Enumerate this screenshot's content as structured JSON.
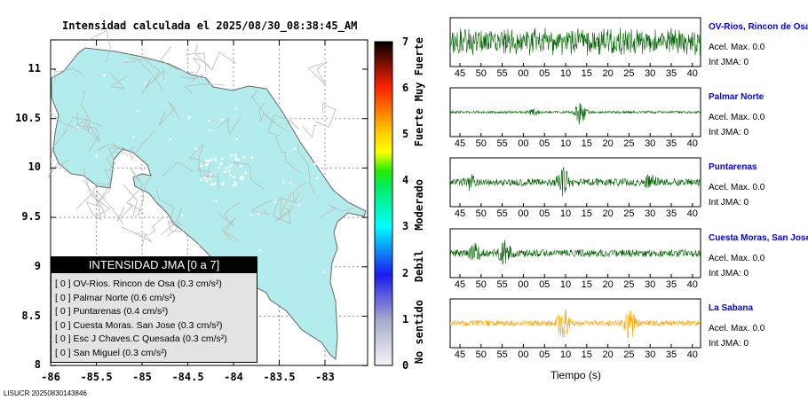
{
  "map": {
    "title": "Intensidad calculada el 2025/08/30_08:38:45_AM",
    "y_ticks": [
      "11",
      "10.5",
      "10",
      "9.5",
      "9",
      "8.5",
      "8"
    ],
    "x_ticks": [
      "-86",
      "-85.5",
      "-85",
      "-84.5",
      "-84",
      "-83.5",
      "-83"
    ],
    "lat_range": [
      8,
      11.3
    ],
    "lon_range": [
      -86,
      -82.5
    ],
    "land_color": "#b3ecec"
  },
  "colorbar": {
    "ticks": [
      "7",
      "6",
      "5",
      "4",
      "3",
      "2",
      "1",
      "0"
    ],
    "words": [
      "Muy Fuerte",
      "Fuerte",
      "Moderado",
      "Debil",
      "No sentido"
    ]
  },
  "legend": {
    "title": "INTENSIDAD JMA [0 a 7]",
    "items": [
      {
        "int": "[ 0 ]",
        "name": "OV-Rios. Rincon de Osa",
        "value": "(0.3 cm/s²)"
      },
      {
        "int": "[ 0 ]",
        "name": "Palmar Norte",
        "value": "(0.6 cm/s²)"
      },
      {
        "int": "[ 0 ]",
        "name": "Puntarenas",
        "value": "(0.4 cm/s²)"
      },
      {
        "int": "[ 0 ]",
        "name": "Cuesta Moras. San Jose",
        "value": "(0.3 cm/s²)"
      },
      {
        "int": "[ 0 ]",
        "name": "Esc J Chaves.C Quesada",
        "value": "(0.3 cm/s²)"
      },
      {
        "int": "[ 0 ]",
        "name": "San Miguel",
        "value": "(0.3 cm/s²)"
      }
    ]
  },
  "footer": "LISUCR 20250830143846",
  "waveforms": {
    "time_ticks": [
      "45",
      "50",
      "55",
      "00",
      "05",
      "10",
      "15",
      "20",
      "25",
      "30",
      "35",
      "40"
    ],
    "xlabel": "Tiempo (s)",
    "stations": [
      {
        "name": "OV-Rios, Rincon de Osa",
        "acel": "Acel. Max. 0.0",
        "int": "Int JMA: 0",
        "color": "#006400"
      },
      {
        "name": "Palmar Norte",
        "acel": "Acel. Max. 0.0",
        "int": "Int JMA: 0",
        "color": "#006400"
      },
      {
        "name": "Puntarenas",
        "acel": "Acel. Max. 0.0",
        "int": "Int JMA: 0",
        "color": "#006400"
      },
      {
        "name": "Cuesta Moras, San Jose",
        "acel": "Acel. Max. 0.0",
        "int": "Int JMA: 0",
        "color": "#006400"
      },
      {
        "name": "La Sabana",
        "acel": "Acel. Max. 0.0",
        "int": "Int JMA: 0",
        "color": "#ffa500"
      }
    ]
  }
}
